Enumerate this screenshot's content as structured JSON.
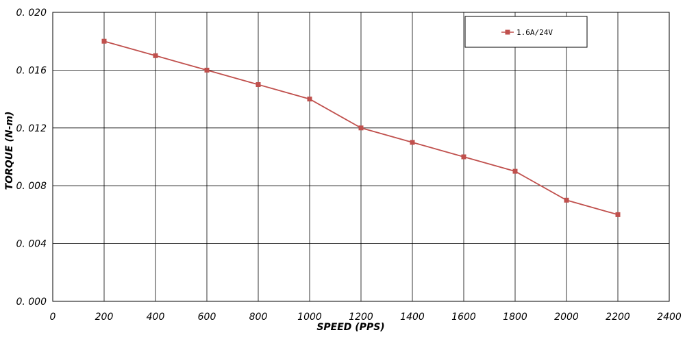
{
  "chart_data": {
    "type": "line",
    "xlabel": "SPEED (PPS)",
    "ylabel": "TORQUE (N-m)",
    "xlim": [
      0,
      2400
    ],
    "ylim": [
      0,
      0.02
    ],
    "x_ticks": [
      "0",
      "200",
      "400",
      "600",
      "800",
      "1000",
      "1200",
      "1400",
      "1600",
      "1800",
      "2000",
      "2200",
      "2400"
    ],
    "y_ticks": [
      "0. 000",
      "0. 004",
      "0. 008",
      "0. 012",
      "0. 016",
      "0. 020"
    ],
    "grid": true,
    "legend_position": "top-right",
    "series": [
      {
        "name": "1.6A/24V",
        "color": "#c0504d",
        "marker": "square",
        "x": [
          200,
          400,
          600,
          800,
          1000,
          1200,
          1400,
          1600,
          1800,
          2000,
          2200
        ],
        "y": [
          0.018,
          0.017,
          0.016,
          0.015,
          0.014,
          0.012,
          0.011,
          0.01,
          0.009,
          0.007,
          0.006
        ]
      }
    ]
  }
}
